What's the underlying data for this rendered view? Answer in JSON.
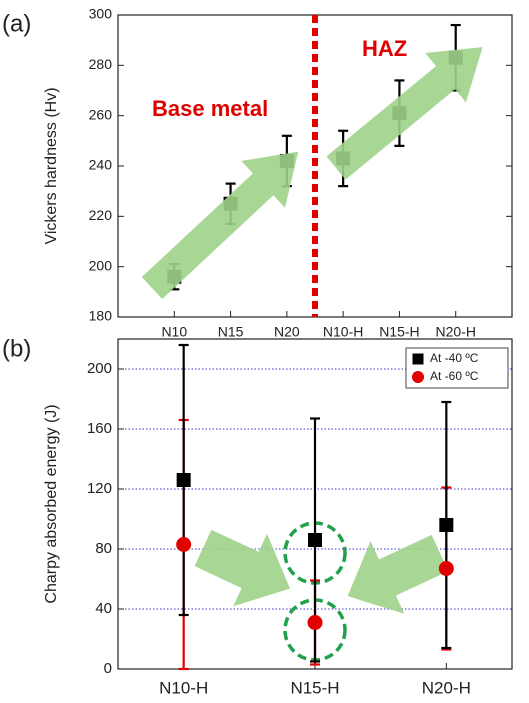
{
  "chart_data": [
    {
      "type": "scatter",
      "label": "(a)",
      "ylabel": "Vickers hardness (Hv)",
      "categories": [
        "N10",
        "N15",
        "N20",
        "N10-H",
        "N15-H",
        "N20-H"
      ],
      "values": [
        196,
        225,
        242,
        243,
        261,
        283
      ],
      "errors": [
        5,
        8,
        10,
        11,
        13,
        13
      ],
      "color": "#000000",
      "ylim": [
        180,
        300
      ],
      "yticks": [
        180,
        200,
        220,
        240,
        260,
        280,
        300
      ],
      "grid": false,
      "annotations": [
        "Base metal",
        "HAZ"
      ]
    },
    {
      "type": "scatter",
      "label": "(b)",
      "ylabel": "Charpy absorbed energy (J)",
      "categories": [
        "N10-H",
        "N15-H",
        "N20-H"
      ],
      "series": [
        {
          "name": "At -40 ºC",
          "color": "#000000",
          "marker": "square",
          "values": [
            126,
            86,
            96
          ],
          "errors": [
            90,
            81,
            82
          ]
        },
        {
          "name": "At -60 ºC",
          "color": "#e00000",
          "marker": "circle",
          "values": [
            83,
            31,
            67
          ],
          "errors": [
            83,
            28,
            54
          ]
        }
      ],
      "ylim": [
        0,
        220
      ],
      "yticks": [
        0,
        40,
        80,
        120,
        160,
        200
      ],
      "grid": true,
      "legend": "top-right"
    }
  ]
}
